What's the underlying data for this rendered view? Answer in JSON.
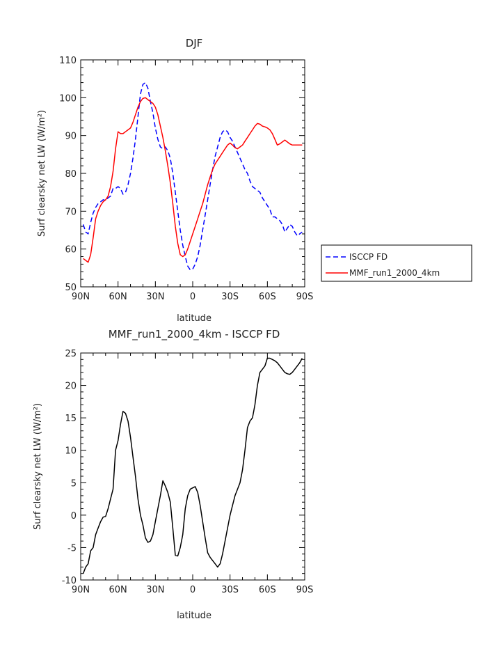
{
  "chart_data": [
    {
      "type": "line",
      "title": "DJF",
      "xlabel": "latitude",
      "ylabel": "Surf clearsky net LW (W/m²)",
      "ylim": [
        50,
        110
      ],
      "xlim": [
        90,
        -90
      ],
      "x_ticks": [
        "90N",
        "60N",
        "30N",
        "0",
        "30S",
        "60S",
        "90S"
      ],
      "y_ticks": [
        "50",
        "60",
        "70",
        "80",
        "90",
        "100",
        "110"
      ],
      "grid": false,
      "legend": "outside-right",
      "series": [
        {
          "name": "ISCCP FD",
          "color": "#0000ff",
          "style": "dashed",
          "x": [
            88,
            86,
            84,
            82,
            80,
            78,
            76,
            74,
            72,
            70,
            68,
            66,
            64,
            62,
            60,
            58,
            56,
            54,
            52,
            50,
            48,
            46,
            44,
            42,
            40,
            38,
            36,
            34,
            32,
            30,
            28,
            26,
            24,
            22,
            20,
            18,
            16,
            14,
            12,
            10,
            8,
            6,
            4,
            2,
            0,
            -2,
            -4,
            -6,
            -8,
            -10,
            -12,
            -14,
            -16,
            -18,
            -20,
            -22,
            -24,
            -26,
            -28,
            -30,
            -32,
            -34,
            -36,
            -38,
            -40,
            -42,
            -44,
            -46,
            -48,
            -50,
            -52,
            -54,
            -56,
            -58,
            -60,
            -62,
            -64,
            -66,
            -68,
            -70,
            -72,
            -74,
            -76,
            -78,
            -80,
            -82,
            -84,
            -86,
            -88
          ],
          "values": [
            66.5,
            64.5,
            64,
            67,
            69.5,
            71,
            72,
            72.5,
            73,
            73,
            73.5,
            74,
            76,
            76,
            76.5,
            76,
            74.5,
            75,
            77,
            80,
            84,
            89,
            95,
            101,
            103.5,
            104,
            102.5,
            99,
            96,
            92,
            89,
            87,
            86.5,
            87,
            86,
            84,
            80,
            75,
            70,
            65,
            61,
            58,
            55.5,
            54.5,
            54.7,
            56,
            58,
            61,
            65,
            69,
            73,
            77,
            81,
            84.5,
            87,
            89.5,
            91,
            91.5,
            91,
            89.5,
            88.5,
            87,
            85.5,
            84,
            82.5,
            81,
            80,
            78,
            76.5,
            76,
            75.5,
            75,
            73.5,
            72.5,
            71.5,
            70.5,
            68.5,
            68.5,
            68,
            67.5,
            66.5,
            64.5,
            65.5,
            66.5,
            66,
            64.5,
            63.5,
            64,
            64.5
          ]
        },
        {
          "name": "MMF_run1_2000_4km",
          "color": "#ff0000",
          "style": "solid",
          "x": [
            88,
            86,
            84,
            82,
            80,
            78,
            76,
            74,
            72,
            70,
            68,
            66,
            64,
            62,
            60,
            58,
            56,
            54,
            52,
            50,
            48,
            46,
            44,
            42,
            40,
            38,
            36,
            34,
            32,
            30,
            28,
            26,
            24,
            22,
            20,
            18,
            16,
            14,
            12,
            10,
            8,
            6,
            4,
            2,
            0,
            -2,
            -4,
            -6,
            -8,
            -10,
            -12,
            -14,
            -16,
            -18,
            -20,
            -22,
            -24,
            -26,
            -28,
            -30,
            -32,
            -34,
            -36,
            -38,
            -40,
            -42,
            -44,
            -46,
            -48,
            -50,
            -52,
            -54,
            -56,
            -58,
            -60,
            -62,
            -64,
            -66,
            -68,
            -70,
            -72,
            -74,
            -76,
            -78,
            -80,
            -82,
            -84,
            -86,
            -88
          ],
          "values": [
            57.5,
            57,
            56.5,
            58.5,
            63,
            68,
            70,
            71.5,
            72.5,
            73,
            74,
            76.5,
            80.5,
            86.5,
            91,
            90.5,
            90.5,
            91,
            91.5,
            92,
            93.5,
            95.5,
            97.5,
            99,
            99.8,
            100,
            99.5,
            99,
            98.5,
            97.5,
            95.5,
            92.5,
            89.5,
            86,
            82,
            77.5,
            72,
            66,
            61.5,
            58.5,
            58,
            58.5,
            60,
            62,
            64,
            66,
            68,
            70,
            72,
            74.5,
            77,
            79,
            81,
            82.5,
            83.5,
            84.5,
            85.5,
            86.5,
            87.5,
            88,
            87.5,
            86.8,
            86.5,
            87,
            87.5,
            88.5,
            89.5,
            90.5,
            91.5,
            92.5,
            93.2,
            93,
            92.5,
            92.3,
            92,
            91.5,
            90.5,
            89,
            87.5,
            87.8,
            88.3,
            88.8,
            88.3,
            87.8,
            87.5,
            87.5,
            87.5,
            87.5,
            87.5
          ]
        }
      ]
    },
    {
      "type": "line",
      "title": "MMF_run1_2000_4km - ISCCP FD",
      "xlabel": "latitude",
      "ylabel": "Surf clearsky net LW (W/m²)",
      "ylim": [
        -10,
        25
      ],
      "xlim": [
        90,
        -90
      ],
      "x_ticks": [
        "90N",
        "60N",
        "30N",
        "0",
        "30S",
        "60S",
        "90S"
      ],
      "y_ticks": [
        "-10",
        "-5",
        "0",
        "5",
        "10",
        "15",
        "20",
        "25"
      ],
      "grid": false,
      "series": [
        {
          "color": "#000000",
          "style": "solid",
          "x": [
            88,
            86,
            84,
            82,
            80,
            78,
            76,
            74,
            72,
            70,
            68,
            66,
            64,
            62,
            60,
            58,
            56,
            54,
            52,
            50,
            48,
            46,
            44,
            42,
            40,
            38,
            36,
            34,
            32,
            30,
            28,
            26,
            24,
            22,
            20,
            18,
            16,
            14,
            12,
            10,
            8,
            6,
            4,
            2,
            0,
            -2,
            -4,
            -6,
            -8,
            -10,
            -12,
            -14,
            -16,
            -18,
            -20,
            -22,
            -24,
            -26,
            -28,
            -30,
            -32,
            -34,
            -36,
            -38,
            -40,
            -42,
            -44,
            -46,
            -48,
            -50,
            -52,
            -54,
            -56,
            -58,
            -60,
            -62,
            -64,
            -66,
            -68,
            -70,
            -72,
            -74,
            -76,
            -78,
            -80,
            -82,
            -84,
            -86,
            -88
          ],
          "values": [
            -9,
            -8,
            -7.5,
            -5.5,
            -5,
            -3,
            -2,
            -1,
            -0.3,
            -0.2,
            1,
            2.5,
            4,
            10,
            11.5,
            14,
            16,
            15.7,
            14.5,
            12,
            9,
            6,
            2.5,
            0,
            -1.5,
            -3.5,
            -4.2,
            -4,
            -3,
            -1,
            1,
            3,
            5.3,
            4.5,
            3.5,
            2,
            -2,
            -6.2,
            -6.3,
            -5,
            -3,
            1,
            3,
            4,
            4.2,
            4.4,
            3.5,
            1.5,
            -1,
            -3.5,
            -5.8,
            -6.5,
            -7,
            -7.5,
            -8,
            -7.5,
            -6,
            -4,
            -2,
            0,
            1.5,
            3,
            4,
            5,
            7,
            10,
            13.5,
            14.5,
            15,
            17,
            20,
            22,
            22.5,
            23,
            24.2,
            24.2,
            24,
            23.8,
            23.5,
            23,
            22.5,
            22,
            21.8,
            21.7,
            22,
            22.5,
            23,
            23.5,
            24.2
          ]
        }
      ]
    }
  ]
}
